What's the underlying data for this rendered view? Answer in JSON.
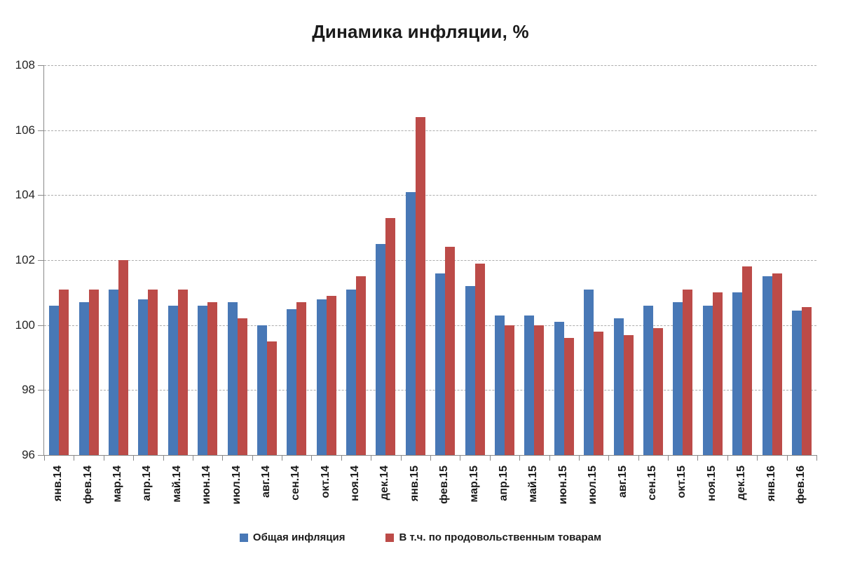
{
  "title": "Динамика инфляции, %",
  "colors": {
    "series_total": "#4878B6",
    "series_food": "#BC4B48",
    "gridline": "#adadad",
    "axis": "#898989",
    "text": "#1a1a1a"
  },
  "chart_data": {
    "type": "bar",
    "title": "Динамика инфляции, %",
    "xlabel": "",
    "ylabel": "",
    "ylim": [
      96,
      108
    ],
    "ytick_step": 2,
    "yticks": [
      96,
      98,
      100,
      102,
      104,
      106,
      108
    ],
    "grid": "horizontal-dashed",
    "legend_position": "bottom",
    "bar_base": 96,
    "categories": [
      "янв.14",
      "фев.14",
      "мар.14",
      "апр.14",
      "май.14",
      "июн.14",
      "июл.14",
      "авг.14",
      "сен.14",
      "окт.14",
      "ноя.14",
      "дек.14",
      "янв.15",
      "фев.15",
      "мар.15",
      "апр.15",
      "май.15",
      "июн.15",
      "июл.15",
      "авг.15",
      "сен.15",
      "окт.15",
      "ноя.15",
      "дек.15",
      "янв.16",
      "фев.16"
    ],
    "series": [
      {
        "name": "Общая инфляция",
        "color": "#4878B6",
        "values": [
          100.6,
          100.7,
          101.1,
          100.8,
          100.6,
          100.6,
          100.7,
          100.0,
          100.5,
          100.8,
          101.1,
          102.5,
          104.1,
          101.6,
          101.2,
          100.3,
          100.3,
          100.1,
          101.1,
          100.2,
          100.6,
          100.7,
          100.6,
          101.0,
          101.5,
          100.45
        ]
      },
      {
        "name": "В т.ч. по продовольственным товарам",
        "color": "#BC4B48",
        "values": [
          101.1,
          101.1,
          102.0,
          101.1,
          101.1,
          100.7,
          100.2,
          99.5,
          100.7,
          100.9,
          101.5,
          103.3,
          106.4,
          102.4,
          101.9,
          100.0,
          100.0,
          99.6,
          99.8,
          99.7,
          99.9,
          101.1,
          101.0,
          101.8,
          101.6,
          100.55
        ]
      }
    ]
  }
}
